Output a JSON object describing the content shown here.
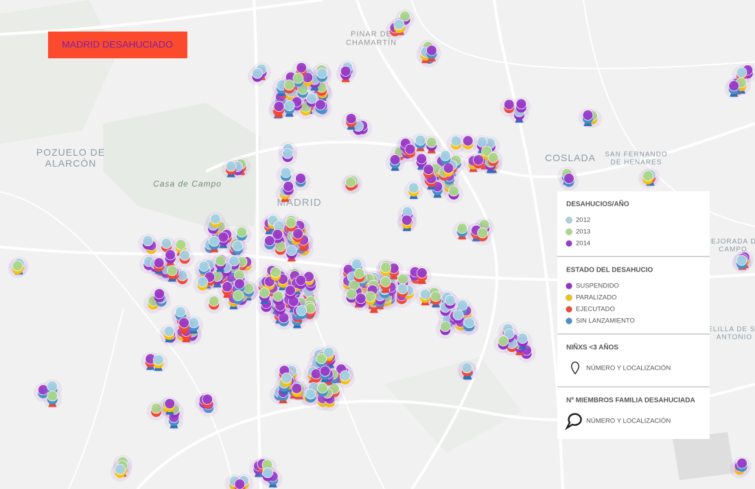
{
  "title": "MADRID DESAHUCIADO",
  "places": [
    {
      "lines": [
        "PINAR DE",
        "CHAMARTÍN"
      ]
    },
    {
      "lines": [
        "POZUELO DE",
        "ALARCÓN"
      ]
    },
    {
      "lines": [
        "Casa de Campo"
      ]
    },
    {
      "lines": [
        "MADRID"
      ]
    },
    {
      "lines": [
        "COSLADA"
      ]
    },
    {
      "lines": [
        "SAN FERNANDO",
        "DE HENARES"
      ]
    },
    {
      "lines": [
        "MEJORADA DE",
        "CAMPO"
      ]
    },
    {
      "lines": [
        "VELILLA DE SAN",
        "ANTONIO"
      ]
    }
  ],
  "legend": {
    "sections": [
      {
        "heading": "DESAHUCIOS/AÑO",
        "items": [
          {
            "label": "2012",
            "color": "#a3d2e3"
          },
          {
            "label": "2013",
            "color": "#a9d98c"
          },
          {
            "label": "2014",
            "color": "#9a3cc9"
          }
        ]
      },
      {
        "heading": "ESTADO DEL DESAHUCIO",
        "items": [
          {
            "label": "SUSPENDIDO",
            "color": "#9430c6"
          },
          {
            "label": "PARALIZADO",
            "color": "#f4c20d"
          },
          {
            "label": "EJECUTADO",
            "color": "#ef4a38"
          },
          {
            "label": "SIN LANZAMIENTO",
            "color": "#4a8fc7"
          }
        ]
      },
      {
        "heading": "NIÑXS <3 AÑOS",
        "items": [
          {
            "label": "NÚMERO Y LOCALIZACIÓN"
          }
        ]
      },
      {
        "heading": "Nº MIEMBROS FAMILIA DESAHUCIADA",
        "items": [
          {
            "label": "NÚMERO Y LOCALIZACIÓN"
          }
        ]
      }
    ]
  }
}
